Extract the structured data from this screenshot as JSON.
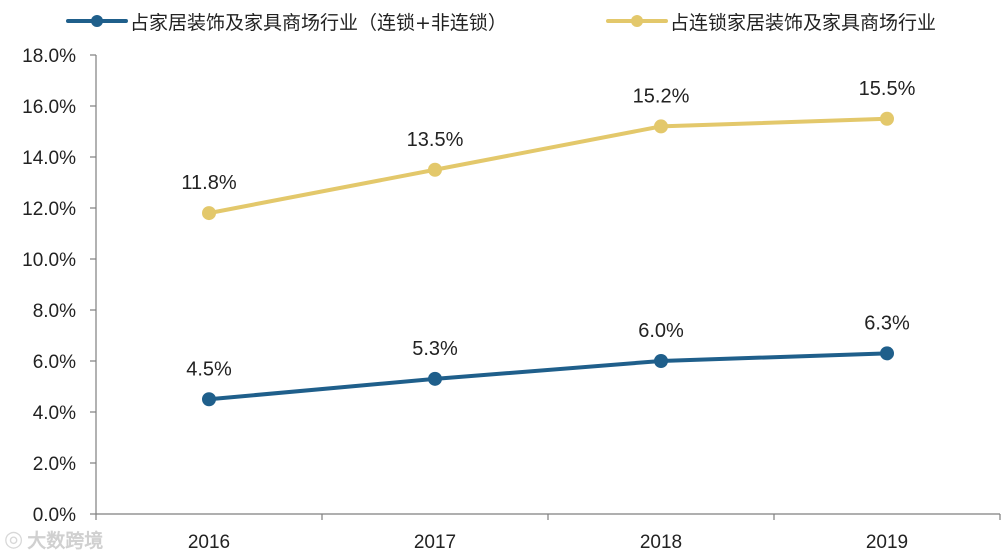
{
  "colors": {
    "series1": "#1f5f8b",
    "series2": "#e3c86b",
    "axis": "#7f7f7f",
    "text": "#222222"
  },
  "legend": {
    "items": [
      {
        "label": "占家居装饰及家具商场行业（连锁+非连锁）"
      },
      {
        "label": "占连锁家居装饰及家具商场行业"
      }
    ]
  },
  "watermark": {
    "text": "大数跨境",
    "icon": "logo-icon"
  },
  "chart_data": {
    "type": "line",
    "title": "",
    "xlabel": "",
    "ylabel": "",
    "categories": [
      "2016",
      "2017",
      "2018",
      "2019"
    ],
    "ylim": [
      0,
      18
    ],
    "yticks": [
      0,
      2,
      4,
      6,
      8,
      10,
      12,
      14,
      16,
      18
    ],
    "ytick_labels": [
      "0.0%",
      "2.0%",
      "4.0%",
      "6.0%",
      "8.0%",
      "10.0%",
      "12.0%",
      "14.0%",
      "16.0%",
      "18.0%"
    ],
    "grid": false,
    "legend_position": "top",
    "series": [
      {
        "name": "占家居装饰及家具商场行业（连锁+非连锁）",
        "values": [
          4.5,
          5.3,
          6.0,
          6.3
        ],
        "labels": [
          "4.5%",
          "5.3%",
          "6.0%",
          "6.3%"
        ]
      },
      {
        "name": "占连锁家居装饰及家具商场行业",
        "values": [
          11.8,
          13.5,
          15.2,
          15.5
        ],
        "labels": [
          "11.8%",
          "13.5%",
          "15.2%",
          "15.5%"
        ]
      }
    ]
  }
}
